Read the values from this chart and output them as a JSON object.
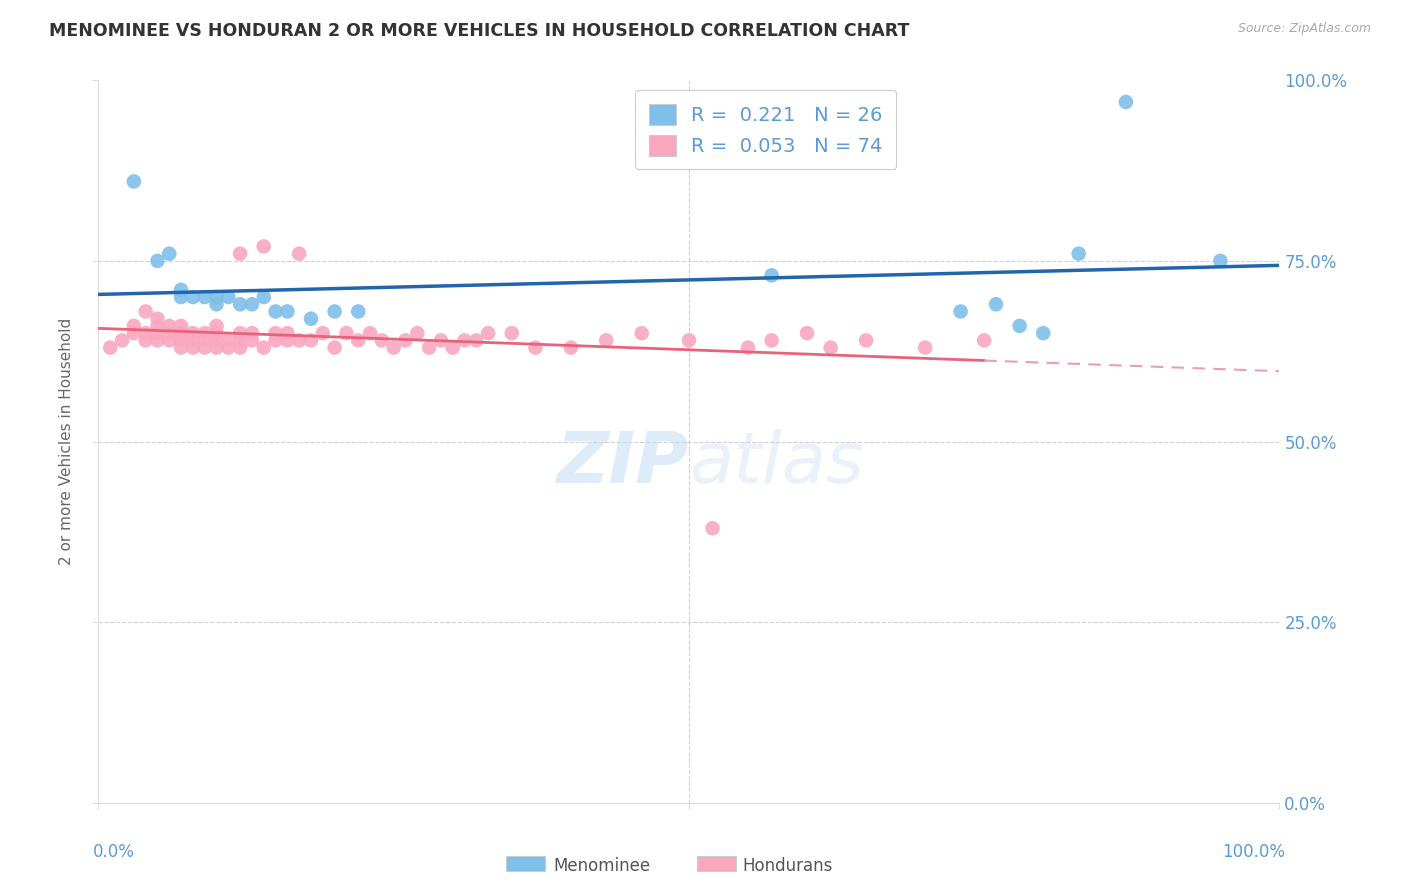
{
  "title": "MENOMINEE VS HONDURAN 2 OR MORE VEHICLES IN HOUSEHOLD CORRELATION CHART",
  "source": "Source: ZipAtlas.com",
  "ylabel": "2 or more Vehicles in Household",
  "ytick_labels": [
    "100.0%",
    "75.0%",
    "50.0%",
    "25.0%",
    "0.0%"
  ],
  "ytick_values": [
    1.0,
    0.75,
    0.5,
    0.25,
    0.0
  ],
  "xlim": [
    0,
    1
  ],
  "ylim": [
    0,
    1
  ],
  "watermark_zip": "ZIP",
  "watermark_atlas": "atlas",
  "legend_blue_r": "0.221",
  "legend_blue_n": "26",
  "legend_pink_r": "0.053",
  "legend_pink_n": "74",
  "legend_label_blue": "Menominee",
  "legend_label_pink": "Hondurans",
  "blue_scatter_color": "#7fbfea",
  "pink_scatter_color": "#f9a8c0",
  "blue_line_color": "#2166ac",
  "pink_line_color": "#e8637a",
  "pink_dash_color": "#e8a0aa",
  "menominee_x": [
    0.03,
    0.05,
    0.06,
    0.07,
    0.07,
    0.08,
    0.09,
    0.1,
    0.1,
    0.11,
    0.12,
    0.13,
    0.14,
    0.15,
    0.16,
    0.18,
    0.2,
    0.22,
    0.57,
    0.73,
    0.76,
    0.78,
    0.8,
    0.83,
    0.87,
    0.95
  ],
  "menominee_y": [
    0.86,
    0.75,
    0.76,
    0.71,
    0.7,
    0.7,
    0.7,
    0.69,
    0.7,
    0.7,
    0.69,
    0.69,
    0.7,
    0.68,
    0.68,
    0.67,
    0.68,
    0.68,
    0.73,
    0.68,
    0.69,
    0.66,
    0.65,
    0.76,
    0.97,
    0.75
  ],
  "honduran_x": [
    0.01,
    0.02,
    0.03,
    0.03,
    0.04,
    0.04,
    0.04,
    0.05,
    0.05,
    0.05,
    0.05,
    0.06,
    0.06,
    0.06,
    0.07,
    0.07,
    0.07,
    0.07,
    0.08,
    0.08,
    0.08,
    0.09,
    0.09,
    0.09,
    0.1,
    0.1,
    0.1,
    0.1,
    0.11,
    0.11,
    0.12,
    0.12,
    0.12,
    0.12,
    0.13,
    0.13,
    0.14,
    0.14,
    0.15,
    0.15,
    0.16,
    0.16,
    0.17,
    0.17,
    0.18,
    0.19,
    0.2,
    0.21,
    0.22,
    0.23,
    0.24,
    0.25,
    0.26,
    0.27,
    0.28,
    0.29,
    0.3,
    0.31,
    0.32,
    0.33,
    0.35,
    0.37,
    0.4,
    0.43,
    0.46,
    0.5,
    0.52,
    0.55,
    0.57,
    0.6,
    0.62,
    0.65,
    0.7,
    0.75
  ],
  "honduran_y": [
    0.63,
    0.64,
    0.65,
    0.66,
    0.64,
    0.65,
    0.68,
    0.64,
    0.65,
    0.66,
    0.67,
    0.64,
    0.65,
    0.66,
    0.63,
    0.64,
    0.65,
    0.66,
    0.63,
    0.64,
    0.65,
    0.63,
    0.64,
    0.65,
    0.63,
    0.64,
    0.65,
    0.66,
    0.63,
    0.64,
    0.63,
    0.64,
    0.65,
    0.76,
    0.64,
    0.65,
    0.63,
    0.77,
    0.64,
    0.65,
    0.64,
    0.65,
    0.64,
    0.76,
    0.64,
    0.65,
    0.63,
    0.65,
    0.64,
    0.65,
    0.64,
    0.63,
    0.64,
    0.65,
    0.63,
    0.64,
    0.63,
    0.64,
    0.64,
    0.65,
    0.65,
    0.63,
    0.63,
    0.64,
    0.65,
    0.64,
    0.38,
    0.63,
    0.64,
    0.65,
    0.63,
    0.64,
    0.63,
    0.64
  ],
  "background_color": "#ffffff",
  "grid_color": "#d0d0d0",
  "title_color": "#333333",
  "tick_label_color": "#5b9bd5"
}
